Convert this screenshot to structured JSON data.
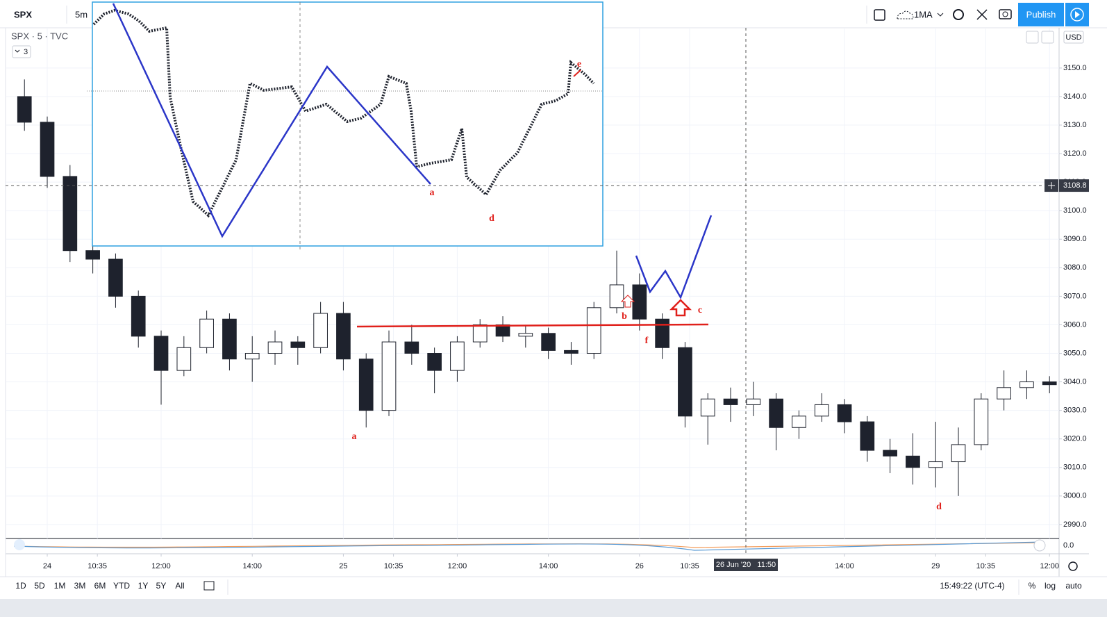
{
  "toolbar": {
    "symbol": "SPX",
    "interval": "5m",
    "indicators": "1MA",
    "publish": "Publish"
  },
  "legend": {
    "title": "SPX · 5 · TVC",
    "count": "3"
  },
  "currency": "USD",
  "indicator_axis_label": "0.0",
  "chart_data": {
    "type": "candlestick",
    "x": [
      -1,
      0,
      1,
      2,
      3,
      4,
      5,
      6,
      7,
      8,
      9,
      10,
      11,
      12,
      13,
      14,
      15,
      16,
      17,
      18,
      19,
      20,
      21,
      22,
      23,
      24,
      25,
      26,
      27,
      28,
      29,
      30,
      31,
      32,
      33,
      34,
      35,
      36,
      37,
      38,
      39,
      40,
      41,
      42,
      43,
      44
    ],
    "open": [
      3140,
      3131,
      3112,
      3086,
      3083,
      3070,
      3056,
      3044,
      3052,
      3062,
      3048,
      3050,
      3054,
      3052,
      3064,
      3048,
      3030,
      3054,
      3050,
      3044,
      3054,
      3060,
      3056,
      3057,
      3051,
      3050,
      3066,
      3074,
      3062,
      3052,
      3028,
      3034,
      3032,
      3034,
      3024,
      3028,
      3032,
      3026,
      3016,
      3014,
      3010,
      3012,
      3018,
      3034,
      3038,
      3040
    ],
    "high": [
      3146,
      3133,
      3116,
      3090,
      3085,
      3072,
      3058,
      3056,
      3065,
      3064,
      3056,
      3058,
      3056,
      3068,
      3068,
      3050,
      3058,
      3060,
      3052,
      3056,
      3062,
      3063,
      3060,
      3059,
      3054,
      3068,
      3086,
      3078,
      3064,
      3054,
      3036,
      3038,
      3040,
      3036,
      3030,
      3036,
      3034,
      3028,
      3020,
      3022,
      3026,
      3024,
      3036,
      3044,
      3044,
      3042
    ],
    "low": [
      3128,
      3108,
      3082,
      3078,
      3066,
      3052,
      3032,
      3042,
      3050,
      3044,
      3040,
      3046,
      3046,
      3050,
      3044,
      3024,
      3028,
      3046,
      3036,
      3040,
      3052,
      3054,
      3052,
      3048,
      3046,
      3048,
      3064,
      3058,
      3048,
      3024,
      3018,
      3026,
      3028,
      3016,
      3020,
      3026,
      3022,
      3012,
      3008,
      3004,
      3003,
      3000,
      3016,
      3030,
      3034,
      3036
    ],
    "close": [
      3131,
      3112,
      3086,
      3083,
      3070,
      3056,
      3044,
      3052,
      3062,
      3048,
      3050,
      3054,
      3052,
      3064,
      3048,
      3030,
      3054,
      3050,
      3044,
      3054,
      3060,
      3056,
      3057,
      3051,
      3050,
      3066,
      3074,
      3062,
      3052,
      3028,
      3034,
      3032,
      3034,
      3024,
      3028,
      3032,
      3026,
      3016,
      3014,
      3010,
      3012,
      3018,
      3034,
      3038,
      3040,
      3039
    ],
    "up_color": "#ffffff",
    "down_color": "#1e222d",
    "edge_color": "#1e222d",
    "xlim": [
      -1.83,
      44.42
    ],
    "xticks": [
      {
        "value": 0,
        "label": "24"
      },
      {
        "value": 2.2,
        "label": "10:35"
      },
      {
        "value": 5,
        "label": "12:00"
      },
      {
        "value": 9,
        "label": "14:00"
      },
      {
        "value": 13,
        "label": "25"
      },
      {
        "value": 15.2,
        "label": "10:35"
      },
      {
        "value": 18,
        "label": "12:00"
      },
      {
        "value": 22,
        "label": "14:00"
      },
      {
        "value": 26,
        "label": "26"
      },
      {
        "value": 28.2,
        "label": "10:35"
      },
      {
        "value": 35,
        "label": "14:00"
      },
      {
        "value": 39,
        "label": "29"
      },
      {
        "value": 41.2,
        "label": "10:35"
      },
      {
        "value": 44,
        "label": "12:00"
      }
    ],
    "ylim": [
      2985.1,
      3164.1
    ],
    "yticks": [
      {
        "value": 2990,
        "label": "2990.0"
      },
      {
        "value": 3000,
        "label": "3000.0"
      },
      {
        "value": 3010,
        "label": "3010.0"
      },
      {
        "value": 3020,
        "label": "3020.0"
      },
      {
        "value": 3030,
        "label": "3030.0"
      },
      {
        "value": 3040,
        "label": "3040.0"
      },
      {
        "value": 3050,
        "label": "3050.0"
      },
      {
        "value": 3060,
        "label": "3060.0"
      },
      {
        "value": 3070,
        "label": "3070.0"
      },
      {
        "value": 3080,
        "label": "3080.0"
      },
      {
        "value": 3090,
        "label": "3090.0"
      },
      {
        "value": 3100,
        "label": "3100.0"
      },
      {
        "value": 3110,
        "label": "3110.0"
      },
      {
        "value": 3120,
        "label": "3120.0"
      },
      {
        "value": 3130,
        "label": "3130.0"
      },
      {
        "value": 3140,
        "label": "3140.0"
      },
      {
        "value": 3150,
        "label": "3150.0"
      }
    ],
    "grid": true,
    "crosshair": {
      "price": 3108.8,
      "x": 30.67,
      "time_label": "26 Jun '20   11:50"
    },
    "annotations": [
      "a",
      "b",
      "f",
      "c",
      "d"
    ],
    "inset_annotations": [
      "a",
      "d",
      "e"
    ]
  },
  "bottom_bar": {
    "ranges": [
      "1D",
      "5D",
      "1M",
      "3M",
      "6M",
      "YTD",
      "1Y",
      "5Y",
      "All"
    ],
    "clock": "15:49:22 (UTC-4)",
    "percent": "%",
    "log": "log",
    "auto": "auto"
  }
}
